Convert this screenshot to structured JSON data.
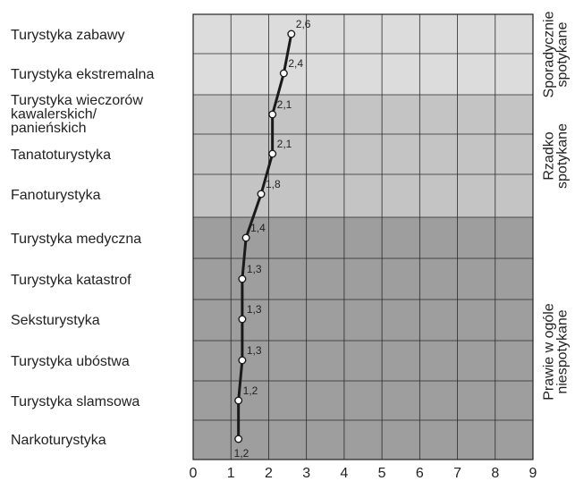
{
  "chart_data": {
    "type": "line",
    "orientation": "horizontal",
    "categories": [
      [
        "Turystyka zabawy"
      ],
      [
        "Turystyka ekstremalna"
      ],
      [
        "Turystyka wieczorów",
        "kawalerskich/",
        "panieńskich"
      ],
      [
        "Tanatoturystyka"
      ],
      [
        "Fanoturystyka"
      ],
      [
        "Turystyka medyczna"
      ],
      [
        "Turystyka katastrof"
      ],
      [
        "Seksturystyka"
      ],
      [
        "Turystyka ubóstwa"
      ],
      [
        "Turystyka slamsowa"
      ],
      [
        "Narkoturystyka"
      ]
    ],
    "values": [
      2.6,
      2.4,
      2.1,
      2.1,
      1.8,
      1.4,
      1.3,
      1.3,
      1.3,
      1.2,
      1.2
    ],
    "data_labels": [
      "2,6",
      "2,4",
      "2,1",
      "2,1",
      "1,8",
      "1,4",
      "1,3",
      "1,3",
      "1,3",
      "1,2",
      "1,2"
    ],
    "xlim": [
      0,
      9
    ],
    "x_ticks": [
      "0",
      "1",
      "2",
      "3",
      "4",
      "5",
      "6",
      "7",
      "8",
      "9"
    ],
    "grid": true,
    "bands": [
      {
        "label": [
          "Sporadycznie",
          "spotykane"
        ],
        "from_category": 0,
        "to_category": 1,
        "color": "#dcdcdc"
      },
      {
        "label": [
          "Rzadko",
          "spotykane"
        ],
        "from_category": 2,
        "to_category": 4,
        "color": "#c4c4c4"
      },
      {
        "label": [
          "Prawie w ogóle",
          "niespotykane"
        ],
        "from_category": 5,
        "to_category": 10,
        "color": "#9e9e9e"
      }
    ],
    "line_color": "#1a1a1a",
    "marker_color": "#ffffff"
  }
}
